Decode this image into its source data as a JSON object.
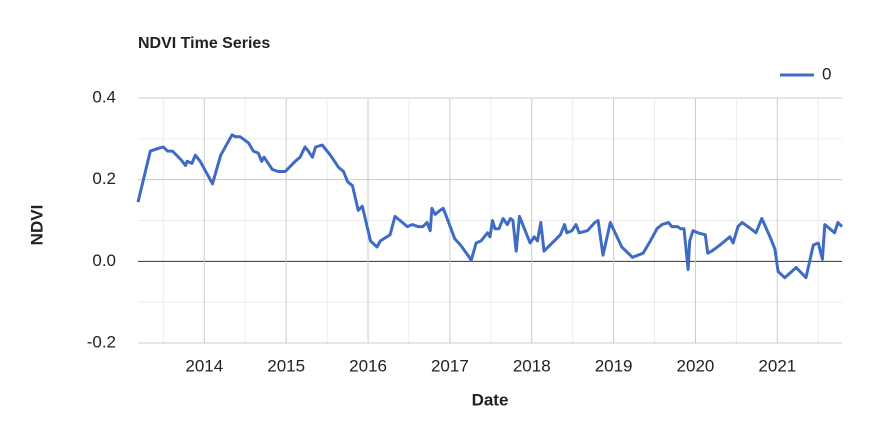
{
  "chart_data": {
    "type": "line",
    "title": "NDVI Time Series",
    "xlabel": "Date",
    "ylabel": "NDVI",
    "x": [
      2013.19,
      2013.34,
      2013.46,
      2013.5,
      2013.55,
      2013.61,
      2013.71,
      2013.77,
      2013.79,
      2013.85,
      2013.89,
      2013.95,
      2014.1,
      2014.2,
      2014.34,
      2014.38,
      2014.44,
      2014.54,
      2014.6,
      2014.66,
      2014.7,
      2014.73,
      2014.83,
      2014.9,
      2014.99,
      2015.11,
      2015.17,
      2015.23,
      2015.27,
      2015.32,
      2015.36,
      2015.44,
      2015.54,
      2015.64,
      2015.7,
      2015.75,
      2015.81,
      2015.88,
      2015.93,
      2016.03,
      2016.11,
      2016.15,
      2016.27,
      2016.33,
      2016.42,
      2016.48,
      2016.54,
      2016.61,
      2016.67,
      2016.72,
      2016.76,
      2016.78,
      2016.82,
      2016.88,
      2016.92,
      2017.06,
      2017.13,
      2017.22,
      2017.26,
      2017.32,
      2017.38,
      2017.46,
      2017.49,
      2017.52,
      2017.55,
      2017.6,
      2017.65,
      2017.7,
      2017.74,
      2017.77,
      2017.81,
      2017.85,
      2017.91,
      2017.98,
      2018.03,
      2018.07,
      2018.11,
      2018.15,
      2018.35,
      2018.4,
      2018.43,
      2018.49,
      2018.54,
      2018.58,
      2018.68,
      2018.77,
      2018.81,
      2018.87,
      2018.96,
      2019.1,
      2019.23,
      2019.36,
      2019.45,
      2019.53,
      2019.59,
      2019.67,
      2019.71,
      2019.78,
      2019.82,
      2019.86,
      2019.91,
      2019.93,
      2019.97,
      2020.03,
      2020.12,
      2020.15,
      2020.2,
      2020.3,
      2020.42,
      2020.46,
      2020.52,
      2020.57,
      2020.64,
      2020.74,
      2020.81,
      2020.91,
      2020.97,
      2021.01,
      2021.09,
      2021.23,
      2021.35,
      2021.44,
      2021.5,
      2021.55,
      2021.58,
      2021.64,
      2021.7,
      2021.74,
      2021.79
    ],
    "series": [
      {
        "name": "0",
        "color": "#3f6bc4",
        "values": [
          0.145,
          0.27,
          0.278,
          0.28,
          0.27,
          0.27,
          0.25,
          0.235,
          0.245,
          0.24,
          0.26,
          0.245,
          0.19,
          0.26,
          0.31,
          0.305,
          0.305,
          0.29,
          0.27,
          0.265,
          0.245,
          0.255,
          0.225,
          0.22,
          0.22,
          0.245,
          0.255,
          0.28,
          0.27,
          0.255,
          0.28,
          0.285,
          0.26,
          0.23,
          0.22,
          0.195,
          0.185,
          0.125,
          0.135,
          0.05,
          0.035,
          0.05,
          0.065,
          0.11,
          0.095,
          0.085,
          0.09,
          0.085,
          0.085,
          0.095,
          0.075,
          0.13,
          0.115,
          0.125,
          0.13,
          0.055,
          0.04,
          0.015,
          0.002,
          0.045,
          0.05,
          0.07,
          0.06,
          0.1,
          0.08,
          0.08,
          0.105,
          0.09,
          0.105,
          0.1,
          0.025,
          0.11,
          0.08,
          0.045,
          0.06,
          0.05,
          0.095,
          0.025,
          0.065,
          0.09,
          0.07,
          0.075,
          0.09,
          0.07,
          0.075,
          0.095,
          0.1,
          0.015,
          0.095,
          0.035,
          0.01,
          0.02,
          0.05,
          0.08,
          0.09,
          0.095,
          0.085,
          0.085,
          0.08,
          0.08,
          -0.02,
          0.05,
          0.075,
          0.07,
          0.065,
          0.02,
          0.025,
          0.04,
          0.06,
          0.045,
          0.085,
          0.095,
          0.085,
          0.07,
          0.105,
          0.06,
          0.03,
          -0.025,
          -0.04,
          -0.015,
          -0.04,
          0.04,
          0.045,
          0.005,
          0.09,
          0.08,
          0.07,
          0.095,
          0.085
        ]
      }
    ],
    "xlim": [
      2013.19,
      2021.79
    ],
    "xticks": [
      2014,
      2015,
      2016,
      2017,
      2018,
      2019,
      2020,
      2021
    ],
    "ylim": [
      -0.2,
      0.4
    ],
    "yticks": [
      -0.2,
      {
        "value": 0,
        "label": "0.0"
      },
      0.2,
      0.4
    ],
    "grid": true,
    "minor_grid": true,
    "legend": "top-right"
  }
}
